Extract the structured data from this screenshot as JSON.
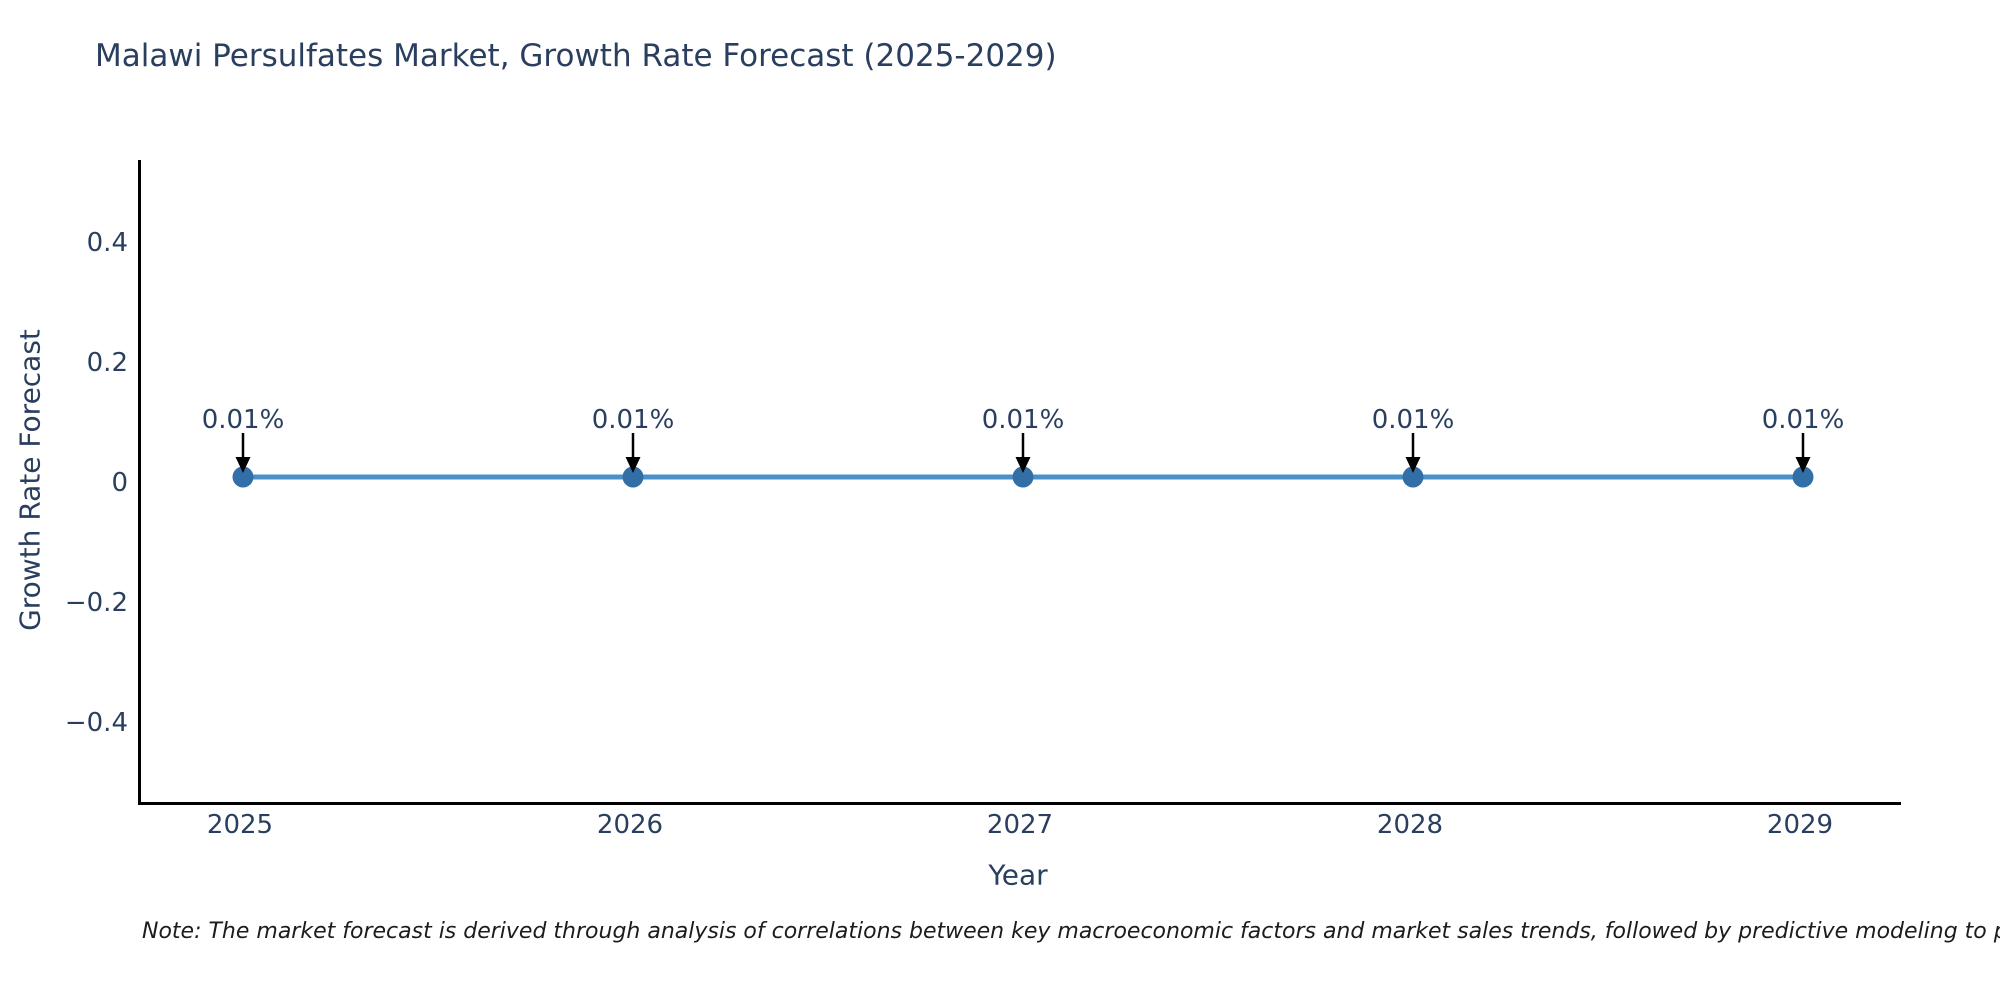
{
  "title": "Malawi Persulfates Market, Growth Rate Forecast (2025-2029)",
  "note": "Note: The market forecast is derived through analysis of correlations between key macroeconomic factors and market sales trends, followed by predictive modeling to project future sa",
  "chart_data": {
    "type": "line",
    "title": "Malawi Persulfates Market, Growth Rate Forecast (2025-2029)",
    "xlabel": "Year",
    "ylabel": "Growth Rate Forecast",
    "x": [
      2025,
      2026,
      2027,
      2028,
      2029
    ],
    "series": [
      {
        "name": "Growth Rate Forecast",
        "values": [
          0.01,
          0.01,
          0.01,
          0.01,
          0.01
        ]
      }
    ],
    "point_labels": [
      "0.01%",
      "0.01%",
      "0.01%",
      "0.01%",
      "0.01%"
    ],
    "yticks": [
      {
        "value": 0.4,
        "label": "0.4"
      },
      {
        "value": 0.2,
        "label": "0.2"
      },
      {
        "value": 0,
        "label": "0"
      },
      {
        "value": -0.2,
        "label": "−0.2"
      },
      {
        "value": -0.4,
        "label": "−0.4"
      }
    ],
    "ylim": [
      -0.535,
      0.538
    ],
    "grid": false,
    "legend": "none",
    "colors": {
      "line": "#4a90c9",
      "marker": "#336fa7",
      "arrow": "#000000",
      "axis": "#000000",
      "text": "#2a3f5f"
    }
  }
}
